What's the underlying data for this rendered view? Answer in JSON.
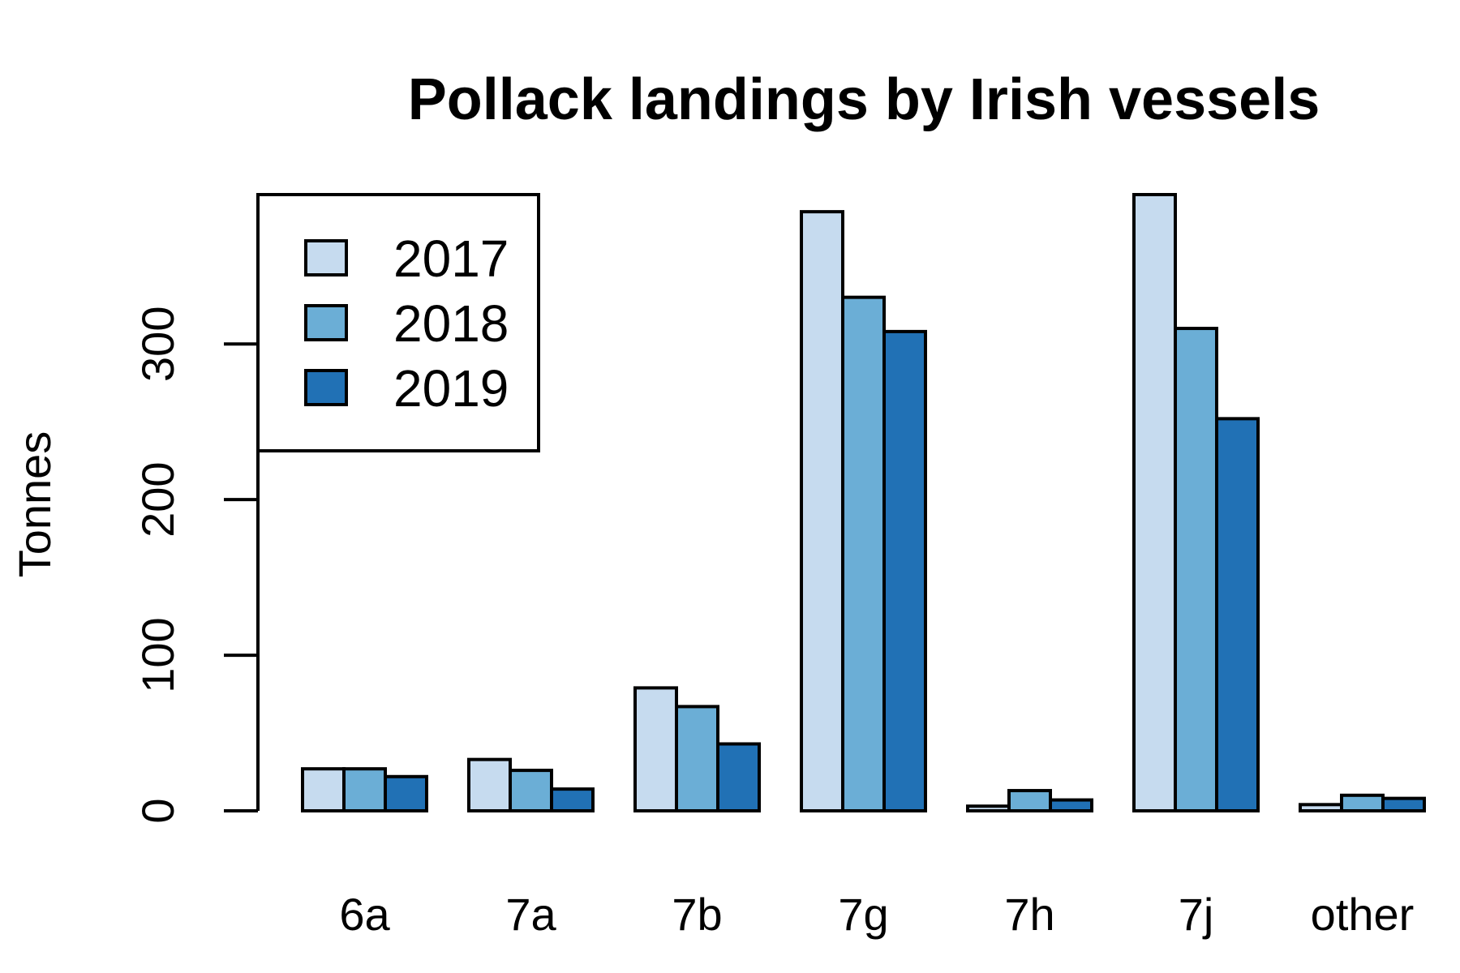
{
  "chart_data": {
    "type": "bar",
    "title": "Pollack landings by Irish vessels",
    "xlabel": "",
    "ylabel": "Tonnes",
    "categories": [
      "6a",
      "7a",
      "7b",
      "7g",
      "7h",
      "7j",
      "other"
    ],
    "series": [
      {
        "name": "2017",
        "color": "#c6dbef",
        "values": [
          27,
          33,
          79,
          385,
          3,
          396,
          4
        ]
      },
      {
        "name": "2018",
        "color": "#6baed6",
        "values": [
          27,
          26,
          67,
          330,
          13,
          310,
          10
        ]
      },
      {
        "name": "2019",
        "color": "#2171b5",
        "values": [
          22,
          14,
          43,
          308,
          7,
          252,
          8
        ]
      }
    ],
    "ylim": [
      0,
      396
    ],
    "yticks": [
      0,
      100,
      200,
      300
    ],
    "grid": false,
    "legend_position": "top-left"
  }
}
